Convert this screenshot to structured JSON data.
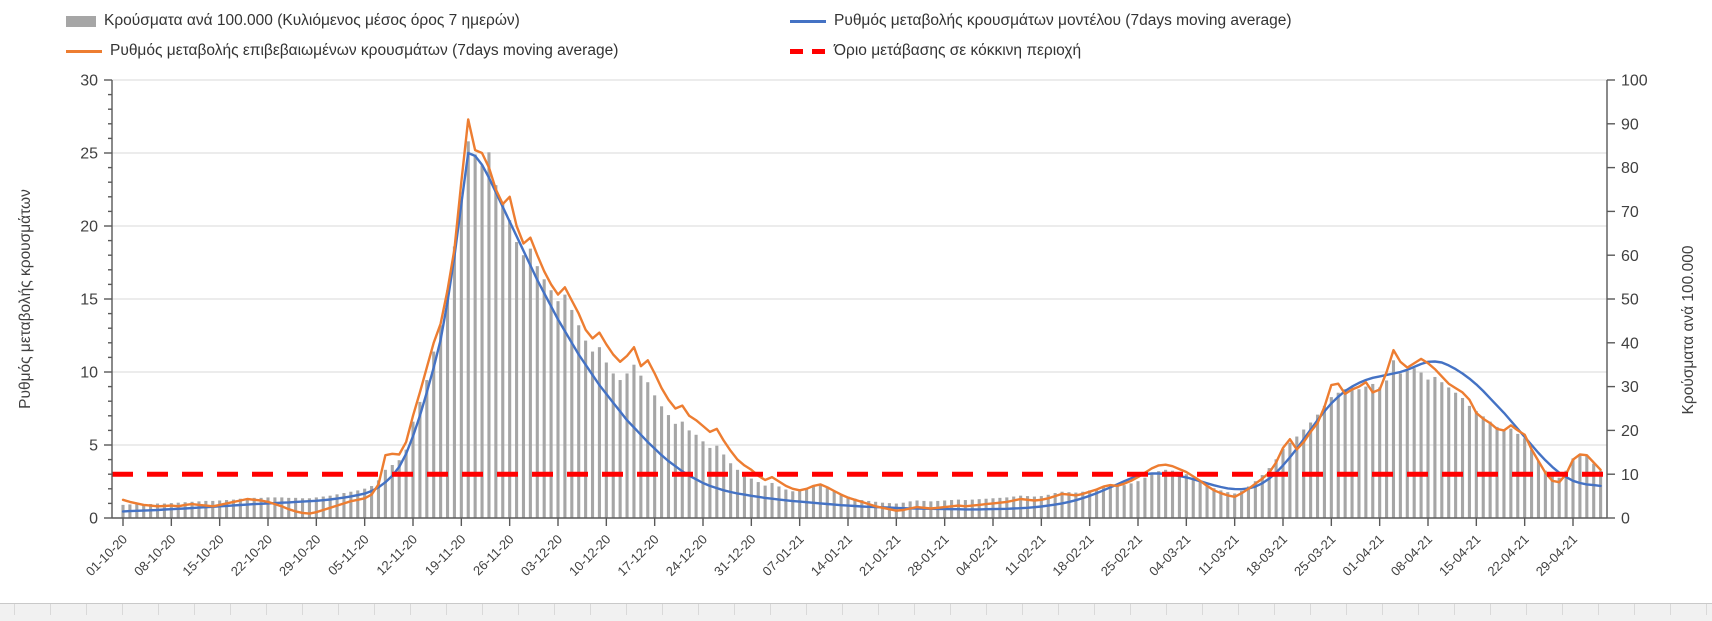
{
  "legend": {
    "items": [
      {
        "id": "cases-bars",
        "label": "Κρούσματα ανά 100.000 (Κυλιόμενος μέσος όρος 7 ημερών)",
        "swatch": "bar",
        "color": "#A6A6A6"
      },
      {
        "id": "model-line",
        "label": "Ρυθμός μεταβολής κρουσμάτων μοντέλου (7days moving average)",
        "swatch": "line",
        "color": "#4472C4"
      },
      {
        "id": "confirmed-line",
        "label": "Ρυθμός μεταβολής επιβεβαιωμένων κρουσμάτων (7days moving average)",
        "swatch": "line",
        "color": "#ED7D31"
      },
      {
        "id": "threshold-line",
        "label": "Όριο μετάβασης σε κόκκινη περιοχή",
        "swatch": "dash",
        "color": "#FF0000"
      }
    ]
  },
  "chart_data": {
    "type": "combo",
    "title": "",
    "legend_position": "top",
    "grid": "horizontal",
    "x_tick_labels": [
      "01-10-20",
      "08-10-20",
      "15-10-20",
      "22-10-20",
      "29-10-20",
      "05-11-20",
      "12-11-20",
      "19-11-20",
      "26-11-20",
      "03-12-20",
      "10-12-20",
      "17-12-20",
      "24-12-20",
      "31-12-20",
      "07-01-21",
      "14-01-21",
      "21-01-21",
      "28-01-21",
      "04-02-21",
      "11-02-21",
      "18-02-21",
      "25-02-21",
      "04-03-21",
      "11-03-21",
      "18-03-21",
      "25-03-21",
      "01-04-21",
      "08-04-21",
      "15-04-21",
      "22-04-21",
      "29-04-21"
    ],
    "x_days_per_tick": 7,
    "n_points": 215,
    "left_axis": {
      "title": "Ρυθμός μεταβολής κρουσμάτων",
      "min": 0,
      "max": 30,
      "tick_step": 5,
      "minor_tick_step": 1
    },
    "right_axis": {
      "title": "Κρούσματα ανά 100.000",
      "min": 0,
      "max": 100,
      "tick_step": 10
    },
    "threshold": {
      "name": "Όριο μετάβασης σε κόκκινη περιοχή",
      "value_left_axis": 3,
      "value_right_axis": 10,
      "color": "#FF0000"
    },
    "series": [
      {
        "name": "Κρούσματα ανά 100.000 (Κυλιόμενος μέσος όρος 7 ημερών)",
        "type": "bar",
        "axis": "right",
        "color": "#A6A6A6",
        "values": [
          3.0,
          3.1,
          3.1,
          3.2,
          3.2,
          3.3,
          3.3,
          3.4,
          3.5,
          3.6,
          3.7,
          3.8,
          3.9,
          3.9,
          4.0,
          4.1,
          4.2,
          4.4,
          4.5,
          4.6,
          4.6,
          4.7,
          4.7,
          4.7,
          4.6,
          4.6,
          4.5,
          4.5,
          4.7,
          4.9,
          5.1,
          5.4,
          5.7,
          6.0,
          6.3,
          6.7,
          7.3,
          8.6,
          11.0,
          12.1,
          13.2,
          15.6,
          22.0,
          26.5,
          31.5,
          38.0,
          44.0,
          52.0,
          62.0,
          73.0,
          86.0,
          83.0,
          80.5,
          83.5,
          76.0,
          72.0,
          68.0,
          63.0,
          60.0,
          61.5,
          57.5,
          54.5,
          52.0,
          49.5,
          51.0,
          47.5,
          44.0,
          40.5,
          38.0,
          39.0,
          35.5,
          33.0,
          31.5,
          33.0,
          35.0,
          32.5,
          31.0,
          28.0,
          25.5,
          23.5,
          21.5,
          22.0,
          20.0,
          19.0,
          17.5,
          16.0,
          16.5,
          14.5,
          12.5,
          11.0,
          10.0,
          9.0,
          8.2,
          7.4,
          8.0,
          7.2,
          6.5,
          6.1,
          6.3,
          6.6,
          7.4,
          7.7,
          7.0,
          6.2,
          5.5,
          4.9,
          4.4,
          4.1,
          3.9,
          3.7,
          3.5,
          3.4,
          3.3,
          3.5,
          3.8,
          4.0,
          3.9,
          3.8,
          3.9,
          4.0,
          4.1,
          4.2,
          4.1,
          4.2,
          4.3,
          4.4,
          4.5,
          4.6,
          4.7,
          4.9,
          5.1,
          5.0,
          4.9,
          5.0,
          5.3,
          5.7,
          6.0,
          5.9,
          5.8,
          6.0,
          6.3,
          6.6,
          7.1,
          7.3,
          7.2,
          7.5,
          7.9,
          8.4,
          9.2,
          10.0,
          10.7,
          11.0,
          10.8,
          10.4,
          10.0,
          9.2,
          8.4,
          7.5,
          6.8,
          6.3,
          5.9,
          5.6,
          6.2,
          7.2,
          8.4,
          9.8,
          11.4,
          13.4,
          15.8,
          17.2,
          18.6,
          20.2,
          21.8,
          23.6,
          25.6,
          27.6,
          28.6,
          29.4,
          29.8,
          29.4,
          30.0,
          30.6,
          29.8,
          31.4,
          36.0,
          33.0,
          33.6,
          34.2,
          33.2,
          31.6,
          32.2,
          31.0,
          29.8,
          28.6,
          27.4,
          25.6,
          24.4,
          23.2,
          22.0,
          20.8,
          20.0,
          20.4,
          19.2,
          18.2,
          15.6,
          13.0,
          10.8,
          9.6,
          9.2,
          10.8,
          13.6,
          14.6,
          14.4,
          12.4,
          10.8
        ]
      },
      {
        "name": "Ρυθμός μεταβολής κρουσμάτων μοντέλου (7days moving average)",
        "type": "line",
        "axis": "left",
        "color": "#4472C4",
        "values": [
          0.45,
          0.47,
          0.49,
          0.51,
          0.53,
          0.55,
          0.58,
          0.6,
          0.63,
          0.65,
          0.68,
          0.71,
          0.74,
          0.77,
          0.8,
          0.83,
          0.86,
          0.89,
          0.92,
          0.95,
          0.97,
          1.0,
          1.02,
          1.05,
          1.07,
          1.1,
          1.12,
          1.15,
          1.18,
          1.22,
          1.27,
          1.33,
          1.4,
          1.48,
          1.57,
          1.67,
          1.85,
          2.1,
          2.45,
          2.9,
          3.5,
          4.4,
          5.6,
          7.0,
          8.6,
          10.3,
          12.2,
          14.8,
          17.9,
          21.5,
          25.0,
          24.8,
          24.2,
          23.3,
          22.3,
          21.3,
          20.3,
          19.3,
          18.3,
          17.3,
          16.3,
          15.4,
          14.5,
          13.6,
          12.8,
          12.0,
          11.2,
          10.5,
          9.8,
          9.1,
          8.5,
          7.9,
          7.3,
          6.7,
          6.2,
          5.7,
          5.2,
          4.75,
          4.3,
          3.9,
          3.55,
          3.2,
          2.9,
          2.65,
          2.4,
          2.2,
          2.05,
          1.9,
          1.78,
          1.68,
          1.6,
          1.52,
          1.45,
          1.38,
          1.32,
          1.26,
          1.21,
          1.16,
          1.12,
          1.08,
          1.04,
          1.0,
          0.96,
          0.92,
          0.88,
          0.85,
          0.82,
          0.79,
          0.77,
          0.75,
          0.73,
          0.71,
          0.69,
          0.67,
          0.66,
          0.65,
          0.64,
          0.63,
          0.62,
          0.61,
          0.6,
          0.6,
          0.59,
          0.59,
          0.59,
          0.6,
          0.61,
          0.62,
          0.63,
          0.65,
          0.67,
          0.7,
          0.74,
          0.79,
          0.85,
          0.92,
          1.0,
          1.1,
          1.22,
          1.36,
          1.52,
          1.7,
          1.9,
          2.1,
          2.3,
          2.52,
          2.72,
          2.88,
          3.0,
          3.05,
          3.05,
          3.02,
          2.96,
          2.88,
          2.78,
          2.66,
          2.52,
          2.38,
          2.24,
          2.12,
          2.03,
          1.98,
          1.97,
          2.02,
          2.15,
          2.38,
          2.7,
          3.1,
          3.6,
          4.15,
          4.75,
          5.4,
          6.05,
          6.7,
          7.3,
          7.85,
          8.3,
          8.7,
          9.0,
          9.25,
          9.45,
          9.6,
          9.7,
          9.8,
          9.9,
          10.0,
          10.15,
          10.35,
          10.55,
          10.7,
          10.72,
          10.65,
          10.45,
          10.2,
          9.9,
          9.55,
          9.15,
          8.7,
          8.2,
          7.7,
          7.2,
          6.65,
          6.1,
          5.55,
          5.0,
          4.45,
          3.95,
          3.5,
          3.1,
          2.8,
          2.55,
          2.4,
          2.3,
          2.25,
          2.2
        ]
      },
      {
        "name": "Ρυθμός μεταβολής επιβεβαιωμένων κρουσμάτων (7days moving average)",
        "type": "line",
        "axis": "left",
        "color": "#ED7D31",
        "values": [
          1.25,
          1.1,
          1.0,
          0.9,
          0.85,
          0.8,
          0.82,
          0.85,
          0.8,
          0.9,
          0.95,
          0.9,
          0.85,
          0.8,
          0.9,
          1.0,
          1.1,
          1.2,
          1.3,
          1.25,
          1.2,
          1.1,
          0.95,
          0.8,
          0.6,
          0.45,
          0.35,
          0.3,
          0.4,
          0.55,
          0.7,
          0.85,
          1.0,
          1.15,
          1.25,
          1.35,
          1.6,
          2.3,
          4.3,
          4.4,
          4.35,
          5.2,
          7.0,
          8.6,
          10.3,
          12.0,
          13.3,
          15.6,
          18.4,
          23.0,
          27.3,
          25.2,
          25.0,
          24.0,
          22.5,
          21.5,
          22.0,
          20.0,
          18.8,
          19.2,
          18.0,
          16.9,
          16.0,
          15.3,
          15.8,
          14.9,
          14.0,
          12.9,
          12.3,
          12.7,
          11.9,
          11.2,
          10.7,
          11.1,
          11.7,
          10.4,
          10.8,
          9.9,
          8.9,
          8.1,
          7.5,
          7.7,
          7.0,
          6.7,
          6.3,
          5.9,
          6.1,
          5.3,
          4.6,
          4.0,
          3.6,
          3.3,
          2.9,
          2.6,
          2.8,
          2.5,
          2.2,
          2.0,
          1.9,
          2.0,
          2.2,
          2.3,
          2.1,
          1.85,
          1.6,
          1.4,
          1.25,
          1.1,
          0.95,
          0.8,
          0.7,
          0.6,
          0.5,
          0.55,
          0.65,
          0.75,
          0.7,
          0.65,
          0.7,
          0.75,
          0.8,
          0.85,
          0.8,
          0.85,
          0.9,
          0.95,
          1.0,
          1.05,
          1.1,
          1.2,
          1.3,
          1.25,
          1.2,
          1.25,
          1.35,
          1.5,
          1.65,
          1.6,
          1.55,
          1.65,
          1.8,
          1.95,
          2.15,
          2.25,
          2.2,
          2.35,
          2.55,
          2.8,
          3.1,
          3.4,
          3.6,
          3.65,
          3.55,
          3.35,
          3.15,
          2.85,
          2.55,
          2.2,
          1.9,
          1.7,
          1.55,
          1.45,
          1.7,
          2.0,
          2.35,
          2.7,
          3.1,
          3.8,
          4.8,
          5.4,
          4.7,
          5.2,
          5.9,
          6.5,
          7.6,
          9.1,
          9.2,
          8.5,
          8.8,
          9.0,
          9.3,
          8.6,
          8.8,
          10.0,
          11.5,
          10.7,
          10.3,
          10.6,
          10.9,
          10.6,
          10.2,
          9.7,
          9.2,
          8.9,
          8.6,
          8.1,
          7.2,
          6.8,
          6.5,
          6.1,
          6.0,
          6.35,
          6.0,
          5.7,
          4.7,
          3.9,
          3.1,
          2.55,
          2.45,
          3.0,
          4.0,
          4.35,
          4.3,
          3.8,
          3.3
        ]
      }
    ],
    "colors": {
      "bars": "#A6A6A6",
      "model_line": "#4472C4",
      "confirmed_line": "#ED7D31",
      "threshold": "#FF0000",
      "gridline": "#D9D9D9",
      "axis_line": "#595959",
      "tick_label": "#404040"
    }
  }
}
